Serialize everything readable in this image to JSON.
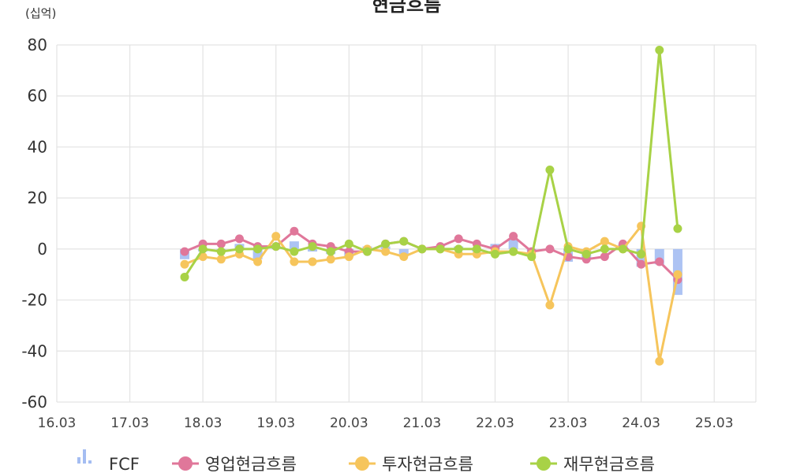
{
  "chart_data": {
    "type": "line",
    "title": "현금흐름",
    "unit_label": "(십억)",
    "ylim": [
      -60,
      80
    ],
    "yticks": [
      80,
      60,
      40,
      20,
      0,
      -20,
      -40,
      -60
    ],
    "xlim": [
      16.03,
      25.6
    ],
    "xticks": [
      {
        "value": 16.03,
        "label": "16.03"
      },
      {
        "value": 17.03,
        "label": "17.03"
      },
      {
        "value": 18.03,
        "label": "18.03"
      },
      {
        "value": 19.03,
        "label": "19.03"
      },
      {
        "value": 20.03,
        "label": "20.03"
      },
      {
        "value": 21.03,
        "label": "21.03"
      },
      {
        "value": 22.03,
        "label": "22.03"
      },
      {
        "value": 23.03,
        "label": "23.03"
      },
      {
        "value": 24.03,
        "label": "24.03"
      },
      {
        "value": 25.03,
        "label": "25.03"
      }
    ],
    "grid": true,
    "legend_position": "bottom",
    "x": [
      17.78,
      18.03,
      18.28,
      18.53,
      18.78,
      19.03,
      19.28,
      19.53,
      19.78,
      20.03,
      20.28,
      20.53,
      20.78,
      21.03,
      21.28,
      21.53,
      21.78,
      22.03,
      22.28,
      22.53,
      22.78,
      23.03,
      23.28,
      23.53,
      23.78,
      24.03,
      24.28,
      24.53
    ],
    "series": [
      {
        "name": "FCF",
        "kind": "bar",
        "color": "#a4bdf2",
        "values": [
          -4,
          -1,
          -1,
          2,
          -4,
          1,
          3,
          -1,
          -2,
          -3,
          1,
          1,
          -2,
          0,
          0,
          1,
          -1,
          2,
          4,
          -1,
          0,
          -5,
          -4,
          -1,
          2,
          -7,
          -6,
          -18
        ]
      },
      {
        "name": "영업현금흐름",
        "kind": "line",
        "color": "#e0779a",
        "values": [
          -1,
          2,
          2,
          4,
          1,
          1,
          7,
          2,
          1,
          -1,
          -1,
          2,
          3,
          0,
          1,
          4,
          2,
          0,
          5,
          -1,
          0,
          -3,
          -4,
          -3,
          2,
          -6,
          -5,
          -12
        ]
      },
      {
        "name": "투자현금흐름",
        "kind": "line",
        "color": "#f6c55c",
        "values": [
          -6,
          -3,
          -4,
          -2,
          -5,
          5,
          -5,
          -5,
          -4,
          -3,
          0,
          -1,
          -3,
          0,
          0,
          -2,
          -2,
          -1,
          -1,
          -2,
          -22,
          1,
          -1,
          3,
          0,
          9,
          -44,
          -10
        ]
      },
      {
        "name": "재무현금흐름",
        "kind": "line",
        "color": "#a8d246",
        "values": [
          -11,
          0,
          -1,
          0,
          0,
          1,
          -1,
          1,
          -1,
          2,
          -1,
          2,
          3,
          0,
          0,
          0,
          0,
          -2,
          -1,
          -3,
          31,
          0,
          -2,
          0,
          0,
          -2,
          78,
          8
        ]
      }
    ]
  }
}
